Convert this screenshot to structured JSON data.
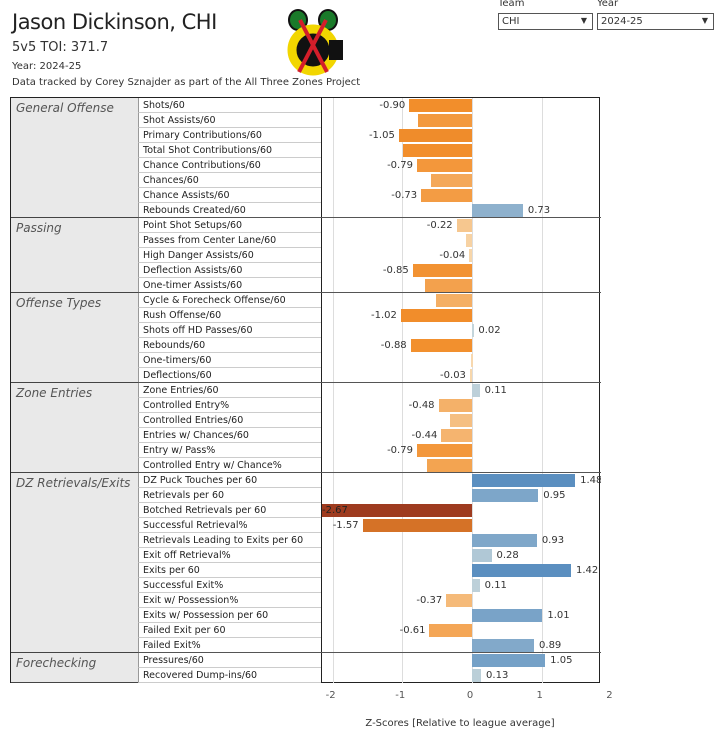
{
  "header": {
    "title": "Jason Dickinson, CHI",
    "toi": "5v5 TOI: 371.7",
    "year": "Year: 2024-25",
    "credit": "Data tracked by Corey Sznajder as part of the All Three Zones Project"
  },
  "filters": {
    "team_label": "Team",
    "team_value": "CHI",
    "year_label": "Year",
    "year_value": "2024-25"
  },
  "logo": {
    "text": "Chicago Blackhawks logo"
  },
  "colors": {
    "neg_light": "#f7d9b0",
    "neg": "#f28e2b",
    "neg_dark": "#9c3a1f",
    "pos_light": "#c5d6db",
    "pos": "#5b8fc0"
  },
  "chart_data": {
    "type": "bar",
    "orientation": "horizontal",
    "xlabel": "Z-Scores [Relative to league average]",
    "xlim": [
      -2,
      2
    ],
    "ticks": [
      "-2",
      "-1",
      "0",
      "1",
      "2"
    ],
    "groups": [
      {
        "name": "General Offense",
        "rows": [
          {
            "label": "Shots/60",
            "value": -0.9,
            "shown": "-0.90"
          },
          {
            "label": "Shot Assists/60",
            "value": -0.77,
            "shown": ""
          },
          {
            "label": "Primary Contributions/60",
            "value": -1.05,
            "shown": "-1.05"
          },
          {
            "label": "Total Shot Contributions/60",
            "value": -0.99,
            "shown": ""
          },
          {
            "label": "Chance Contributions/60",
            "value": -0.79,
            "shown": "-0.79"
          },
          {
            "label": "Chances/60",
            "value": -0.59,
            "shown": ""
          },
          {
            "label": "Chance Assists/60",
            "value": -0.73,
            "shown": "-0.73"
          },
          {
            "label": "Rebounds Created/60",
            "value": 0.73,
            "shown": "0.73"
          }
        ]
      },
      {
        "name": "Passing",
        "rows": [
          {
            "label": "Point Shot Setups/60",
            "value": -0.22,
            "shown": "-0.22"
          },
          {
            "label": "Passes from Center Lane/60",
            "value": -0.09,
            "shown": ""
          },
          {
            "label": "High Danger Assists/60",
            "value": -0.04,
            "shown": "-0.04"
          },
          {
            "label": "Deflection Assists/60",
            "value": -0.85,
            "shown": "-0.85"
          },
          {
            "label": "One-timer Assists/60",
            "value": -0.67,
            "shown": ""
          }
        ]
      },
      {
        "name": "Offense Types",
        "rows": [
          {
            "label": "Cycle & Forecheck Offense/60",
            "value": -0.51,
            "shown": ""
          },
          {
            "label": "Rush Offense/60",
            "value": -1.02,
            "shown": "-1.02"
          },
          {
            "label": "Shots off HD Passes/60",
            "value": 0.02,
            "shown": "0.02"
          },
          {
            "label": "Rebounds/60",
            "value": -0.88,
            "shown": "-0.88"
          },
          {
            "label": "One-timers/60",
            "value": -0.01,
            "shown": ""
          },
          {
            "label": "Deflections/60",
            "value": -0.03,
            "shown": "-0.03"
          }
        ]
      },
      {
        "name": "Zone Entries",
        "rows": [
          {
            "label": "Zone Entries/60",
            "value": 0.11,
            "shown": "0.11"
          },
          {
            "label": "Controlled Entry%",
            "value": -0.48,
            "shown": "-0.48"
          },
          {
            "label": "Controlled Entries/60",
            "value": -0.31,
            "shown": ""
          },
          {
            "label": "Entries w/ Chances/60",
            "value": -0.44,
            "shown": "-0.44"
          },
          {
            "label": "Entry w/ Pass%",
            "value": -0.79,
            "shown": "-0.79"
          },
          {
            "label": "Controlled Entry w/ Chance%",
            "value": -0.64,
            "shown": ""
          }
        ]
      },
      {
        "name": "DZ Retrievals/Exits",
        "rows": [
          {
            "label": "DZ Puck Touches per 60",
            "value": 1.48,
            "shown": "1.48"
          },
          {
            "label": "Retrievals per 60",
            "value": 0.95,
            "shown": "0.95"
          },
          {
            "label": "Botched Retrievals per 60",
            "value": -2.67,
            "shown": "-2.67"
          },
          {
            "label": "Successful Retrieval%",
            "value": -1.57,
            "shown": "-1.57"
          },
          {
            "label": "Retrievals Leading to Exits per 60",
            "value": 0.93,
            "shown": "0.93"
          },
          {
            "label": "Exit off Retrieval%",
            "value": 0.28,
            "shown": "0.28"
          },
          {
            "label": "Exits per 60",
            "value": 1.42,
            "shown": "1.42"
          },
          {
            "label": "Successful Exit%",
            "value": 0.11,
            "shown": "0.11"
          },
          {
            "label": "Exit w/ Possession%",
            "value": -0.37,
            "shown": "-0.37"
          },
          {
            "label": "Exits w/ Possession per 60",
            "value": 1.01,
            "shown": "1.01"
          },
          {
            "label": "Failed Exit per 60",
            "value": -0.61,
            "shown": "-0.61"
          },
          {
            "label": "Failed Exit%",
            "value": 0.89,
            "shown": "0.89"
          }
        ]
      },
      {
        "name": "Forechecking",
        "rows": [
          {
            "label": "Pressures/60",
            "value": 1.05,
            "shown": "1.05"
          },
          {
            "label": "Recovered Dump-ins/60",
            "value": 0.13,
            "shown": "0.13"
          }
        ]
      }
    ]
  }
}
